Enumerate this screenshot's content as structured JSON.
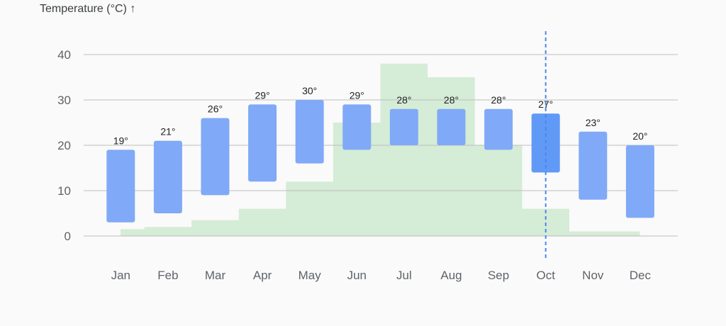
{
  "chart_data": {
    "type": "bar",
    "y_axis_title": "Temperature (°C) ↑",
    "ylim": [
      0,
      40
    ],
    "yticks": [
      "0",
      "10",
      "20",
      "30",
      "40"
    ],
    "ytick_values": [
      0,
      10,
      20,
      30,
      40
    ],
    "grid": true,
    "categories": [
      "Jan",
      "Feb",
      "Mar",
      "Apr",
      "May",
      "Jun",
      "Jul",
      "Aug",
      "Sep",
      "Oct",
      "Nov",
      "Dec"
    ],
    "series": [
      {
        "type": "range-bar",
        "low": [
          3,
          5,
          9,
          12,
          16,
          19,
          20,
          20,
          19,
          14,
          8,
          4
        ],
        "high": [
          19,
          21,
          26,
          29,
          30,
          29,
          28,
          28,
          28,
          27,
          23,
          20
        ],
        "labels": [
          "19°",
          "21°",
          "26°",
          "29°",
          "30°",
          "29°",
          "28°",
          "28°",
          "28°",
          "27°",
          "23°",
          "20°"
        ]
      },
      {
        "type": "step-area",
        "values": [
          1.5,
          2,
          3.5,
          6,
          12,
          25,
          38,
          35,
          20,
          6,
          1,
          1
        ]
      }
    ],
    "highlight_category": "Oct",
    "colors": {
      "bar": "#80a9f7",
      "bar_highlight": "#6199f7",
      "area": "#d5ecd6",
      "marker_line": "#4a88e8",
      "grid": "#bdbdbd"
    }
  }
}
